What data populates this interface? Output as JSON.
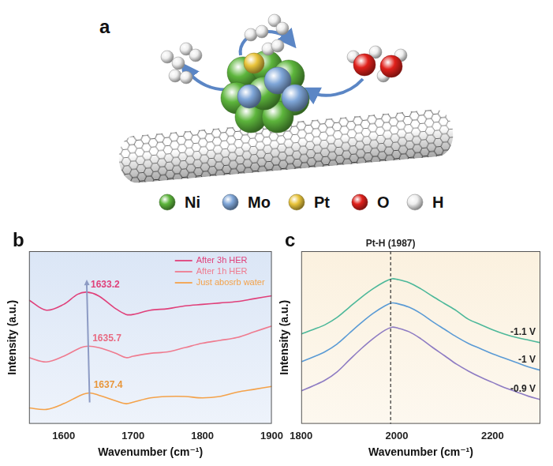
{
  "diagram": {
    "title": "a",
    "legend": [
      {
        "name": "Ni",
        "color": "#5db53c"
      },
      {
        "name": "Mo",
        "color": "#7fa6d8"
      },
      {
        "name": "Pt",
        "color": "#e9c43b"
      },
      {
        "name": "O",
        "color": "#e0201b"
      },
      {
        "name": "H",
        "color": "#eeeeee"
      }
    ]
  },
  "chart_data": [
    {
      "type": "line",
      "title": "b",
      "x_label": "Wavenumber (cm⁻¹)",
      "y_label": "Intensity (a.u.)",
      "xlim": [
        1550,
        1900
      ],
      "xticks": [
        1600,
        1700,
        1800,
        1900
      ],
      "ylim": [
        0,
        12
      ],
      "tick_labels": "x",
      "grid": false,
      "legend": "upper right",
      "series": [
        {
          "name": "After 3h HER",
          "color": "#e0407a",
          "x": [
            1550,
            1575,
            1600,
            1620,
            1633.2,
            1650,
            1675,
            1690,
            1700,
            1725,
            1750,
            1775,
            1800,
            1825,
            1850,
            1875,
            1900
          ],
          "values": [
            8.6,
            7.9,
            8.3,
            9.0,
            9.15,
            8.9,
            8.0,
            7.6,
            7.6,
            7.9,
            8.0,
            8.2,
            8.3,
            8.4,
            8.5,
            8.7,
            8.9
          ]
        },
        {
          "name": "After 1h HER",
          "color": "#ef7b8f",
          "x": [
            1550,
            1575,
            1600,
            1625,
            1635.7,
            1650,
            1675,
            1690,
            1700,
            1725,
            1750,
            1775,
            1800,
            1825,
            1850,
            1875,
            1900
          ],
          "values": [
            4.6,
            4.3,
            4.7,
            5.3,
            5.4,
            5.3,
            4.9,
            4.6,
            4.7,
            4.9,
            5.0,
            5.3,
            5.6,
            5.8,
            6.0,
            6.4,
            6.8
          ]
        },
        {
          "name": "Just abosrb water",
          "color": "#f4a24a",
          "x": [
            1550,
            1575,
            1600,
            1625,
            1637.4,
            1650,
            1675,
            1690,
            1700,
            1725,
            1750,
            1775,
            1800,
            1825,
            1850,
            1875,
            1900
          ],
          "values": [
            1.1,
            1.0,
            1.4,
            2.0,
            2.15,
            2.0,
            1.6,
            1.4,
            1.5,
            1.8,
            1.9,
            1.9,
            1.8,
            1.9,
            2.2,
            2.4,
            2.6
          ]
        }
      ],
      "annotations": [
        {
          "text": "1633.2",
          "x": 1633.2,
          "y": 9.15,
          "color": "#e0407a"
        },
        {
          "text": "1635.7",
          "x": 1635.7,
          "y": 5.4,
          "color": "#e86a82"
        },
        {
          "text": "1637.4",
          "x": 1637.4,
          "y": 2.15,
          "color": "#e8963a"
        }
      ]
    },
    {
      "type": "line",
      "title": "c",
      "x_label": "Wavenumber (cm⁻¹)",
      "y_label": "Intensity (a.u.)",
      "xlim": [
        1800,
        2300
      ],
      "xticks": [
        1800,
        2000,
        2200
      ],
      "ylim": [
        0,
        10
      ],
      "tick_labels": "x",
      "grid": false,
      "x": [
        1800,
        1825,
        1850,
        1875,
        1900,
        1925,
        1950,
        1975,
        1990,
        2000,
        2025,
        2050,
        2075,
        2100,
        2125,
        2150,
        2175,
        2200,
        2225,
        2250,
        2275,
        2300
      ],
      "series": [
        {
          "name": "-1.1 V",
          "color": "#4db89a",
          "values": [
            5.2,
            5.46,
            5.74,
            6.16,
            6.74,
            7.31,
            7.82,
            8.24,
            8.4,
            8.37,
            8.18,
            7.82,
            7.38,
            6.96,
            6.54,
            6.05,
            5.75,
            5.45,
            5.2,
            5.0,
            4.85,
            4.7
          ]
        },
        {
          "name": "-1 V",
          "color": "#5b9bd5",
          "values": [
            3.6,
            3.87,
            4.18,
            4.62,
            5.23,
            5.84,
            6.39,
            6.83,
            7.0,
            6.97,
            6.76,
            6.39,
            5.91,
            5.47,
            5.03,
            4.65,
            4.35,
            4.05,
            3.8,
            3.55,
            3.3,
            3.1
          ]
        },
        {
          "name": "-0.9 V",
          "color": "#8e7cc3",
          "values": [
            1.9,
            2.2,
            2.53,
            3.01,
            3.68,
            4.34,
            4.93,
            5.42,
            5.6,
            5.56,
            5.34,
            4.93,
            4.42,
            3.94,
            3.45,
            3.05,
            2.7,
            2.4,
            2.1,
            1.85,
            1.6,
            1.4
          ]
        }
      ],
      "annotations": [
        {
          "text": "Pt-H (1987)",
          "x": 1987
        }
      ]
    }
  ]
}
